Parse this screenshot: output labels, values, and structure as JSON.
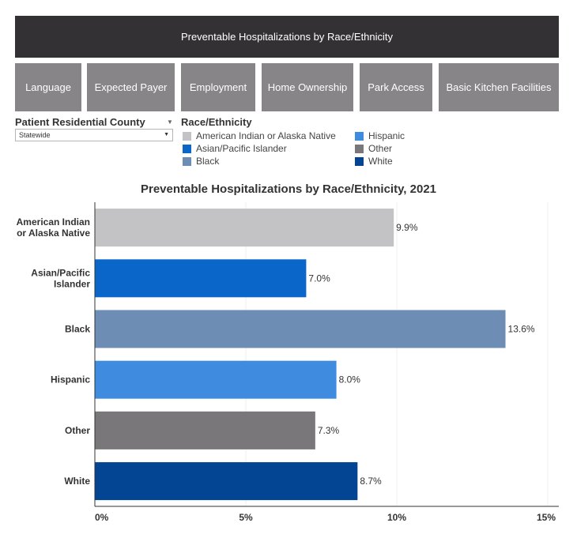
{
  "header": {
    "title": "Preventable Hospitalizations by Race/Ethnicity"
  },
  "nav": [
    {
      "label": "Language"
    },
    {
      "label": "Expected Payer"
    },
    {
      "label": "Employment"
    },
    {
      "label": "Home Ownership"
    },
    {
      "label": "Park Access"
    },
    {
      "label": "Basic Kitchen Facilities"
    }
  ],
  "filter": {
    "label": "Patient Residential County",
    "value": "Statewide"
  },
  "legend": {
    "title": "Race/Ethnicity",
    "items": [
      {
        "label": "American Indian or Alaska Native",
        "color": "#c3c2c4"
      },
      {
        "label": "Asian/Pacific Islander",
        "color": "#0b66c9"
      },
      {
        "label": "Black",
        "color": "#6e8db4"
      },
      {
        "label": "Hispanic",
        "color": "#3f8be0"
      },
      {
        "label": "Other",
        "color": "#797779"
      },
      {
        "label": "White",
        "color": "#034592"
      }
    ]
  },
  "chart_data": {
    "type": "bar",
    "orientation": "horizontal",
    "title": "Preventable Hospitalizations by Race/Ethnicity, 2021",
    "categories": [
      [
        "American Indian",
        "or Alaska Native"
      ],
      [
        "Asian/Pacific",
        "Islander"
      ],
      [
        "Black"
      ],
      [
        "Hispanic"
      ],
      [
        "Other"
      ],
      [
        "White"
      ]
    ],
    "values": [
      9.9,
      7.0,
      13.6,
      8.0,
      7.3,
      8.7
    ],
    "value_labels": [
      "9.9%",
      "7.0%",
      "13.6%",
      "8.0%",
      "7.3%",
      "8.7%"
    ],
    "colors": [
      "#c3c2c4",
      "#0b66c9",
      "#6e8db4",
      "#3f8be0",
      "#797779",
      "#034592"
    ],
    "xticks": [
      0,
      5,
      10,
      15
    ],
    "xtick_labels": [
      "0%",
      "5%",
      "10%",
      "15%"
    ],
    "xlim": [
      0,
      15.5
    ],
    "xlabel": "",
    "ylabel": "",
    "grid": true
  }
}
